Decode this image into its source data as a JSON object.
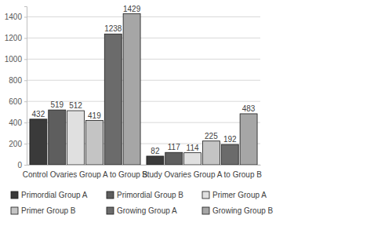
{
  "chart_data": {
    "type": "bar",
    "categories": [
      "Control Ovaries Group A to Group B",
      "Study Ovaries Group A to Group B"
    ],
    "series": [
      {
        "name": "Primordial Group A",
        "color": "#3a3a3a",
        "values": [
          432,
          82
        ]
      },
      {
        "name": "Primordial Group B",
        "color": "#5e5e5e",
        "values": [
          519,
          117
        ]
      },
      {
        "name": "Primer Group A",
        "color": "#e0e0e0",
        "values": [
          512,
          114
        ]
      },
      {
        "name": "Primer Group B",
        "color": "#c4c4c4",
        "values": [
          419,
          225
        ]
      },
      {
        "name": "Growing Group A",
        "color": "#6b6b6b",
        "values": [
          1238,
          192
        ]
      },
      {
        "name": "Growing Group B",
        "color": "#a6a6a6",
        "values": [
          1429,
          483
        ]
      }
    ],
    "ylim": [
      0,
      1500
    ],
    "yticks": [
      0,
      200,
      400,
      600,
      800,
      1000,
      1200,
      1400
    ],
    "grid": true,
    "data_labels": true,
    "legend": "bottom"
  }
}
